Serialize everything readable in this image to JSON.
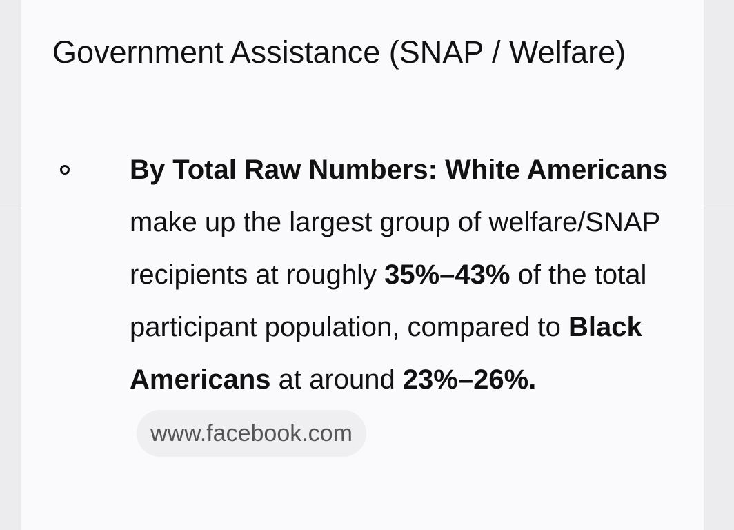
{
  "heading": "Government Assistance (SNAP / Welfare)",
  "bullets": [
    {
      "segments": [
        {
          "text": "By Total Raw Numbers: White Americans",
          "bold": true
        },
        {
          "text": " make up the largest group of welfare/SNAP recipients at roughly ",
          "bold": false
        },
        {
          "text": "35%–43%",
          "bold": true
        },
        {
          "text": " of the total participant population, compared to ",
          "bold": false
        },
        {
          "text": "Black Americans",
          "bold": true
        },
        {
          "text": " at around ",
          "bold": false
        },
        {
          "text": "23%–26%.",
          "bold": true
        }
      ],
      "source": "www.facebook.com"
    }
  ]
}
